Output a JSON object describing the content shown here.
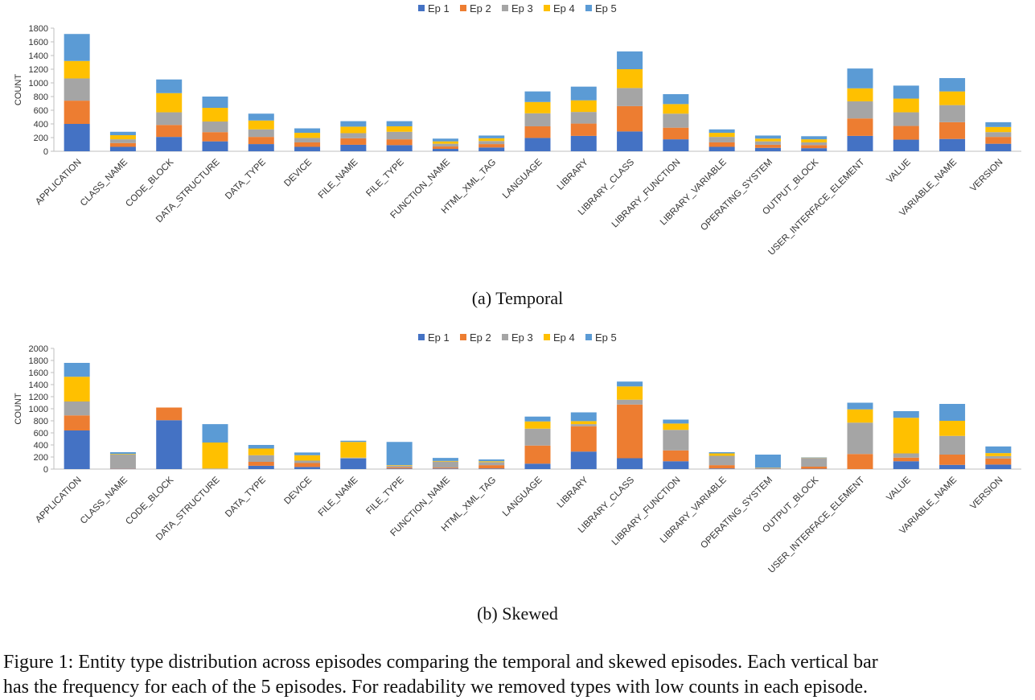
{
  "figure_caption_line1": "Figure 1: Entity type distribution across episodes comparing the temporal and skewed episodes. Each vertical bar",
  "figure_caption_line2": "has the frequency for each of the 5 episodes. For readability we removed types with low counts in each episode.",
  "chart_data": [
    {
      "type": "bar",
      "stacked": true,
      "caption": "(a) Temporal",
      "ylabel": "COUNT",
      "ylim": [
        0,
        1800
      ],
      "yticks": [
        0,
        200,
        400,
        600,
        800,
        1000,
        1200,
        1400,
        1600,
        1800
      ],
      "legend": "top-center",
      "categories": [
        "APPLICATION",
        "CLASS_NAME",
        "CODE_BLOCK",
        "DATA_STRUCTURE",
        "DATA_TYPE",
        "DEVICE",
        "FILE_NAME",
        "FILE_TYPE",
        "FUNCTION_NAME",
        "HTML_XML_TAG",
        "LANGUAGE",
        "LIBRARY",
        "LIBRARY_CLASS",
        "LIBRARY_FUNCTION",
        "LIBRARY_VARIABLE",
        "OPERATING_SYSTEM",
        "OUTPUT_BLOCK",
        "USER_INTERFACE_ELEMENT",
        "VALUE",
        "VARIABLE_NAME",
        "VERSION"
      ],
      "series": [
        {
          "name": "Ep 1",
          "color": "#4472C4",
          "values": [
            400,
            65,
            210,
            145,
            105,
            65,
            95,
            90,
            35,
            55,
            195,
            225,
            290,
            175,
            65,
            50,
            45,
            225,
            170,
            180,
            110
          ]
        },
        {
          "name": "Ep 2",
          "color": "#ED7D31",
          "values": [
            340,
            55,
            175,
            135,
            105,
            65,
            95,
            85,
            35,
            50,
            170,
            180,
            370,
            170,
            65,
            45,
            45,
            255,
            200,
            245,
            100
          ]
        },
        {
          "name": "Ep 3",
          "color": "#A5A5A5",
          "values": [
            325,
            55,
            185,
            155,
            110,
            65,
            75,
            110,
            40,
            45,
            190,
            170,
            265,
            205,
            80,
            50,
            40,
            250,
            200,
            250,
            70
          ]
        },
        {
          "name": "Ep 4",
          "color": "#FFC000",
          "values": [
            255,
            60,
            280,
            200,
            130,
            75,
            95,
            80,
            35,
            40,
            165,
            170,
            275,
            140,
            60,
            40,
            45,
            190,
            200,
            200,
            75
          ]
        },
        {
          "name": "Ep 5",
          "color": "#5B9BD5",
          "values": [
            395,
            50,
            200,
            165,
            100,
            65,
            80,
            75,
            40,
            40,
            155,
            200,
            260,
            145,
            50,
            45,
            45,
            290,
            190,
            195,
            70
          ]
        }
      ]
    },
    {
      "type": "bar",
      "stacked": true,
      "caption": "(b) Skewed",
      "ylabel": "COUNT",
      "ylim": [
        0,
        2000
      ],
      "yticks": [
        0,
        200,
        400,
        600,
        800,
        1000,
        1200,
        1400,
        1600,
        1800,
        2000
      ],
      "legend": "top-center",
      "categories": [
        "APPLICATION",
        "CLASS_NAME",
        "CODE_BLOCK",
        "DATA_STRUCTURE",
        "DATA_TYPE",
        "DEVICE",
        "FILE_NAME",
        "FILE_TYPE",
        "FUNCTION_NAME",
        "HTML_XML_TAG",
        "LANGUAGE",
        "LIBRARY",
        "LIBRARY_CLASS",
        "LIBRARY_FUNCTION",
        "LIBRARY_VARIABLE",
        "OPERATING_SYSTEM",
        "OUTPUT_BLOCK",
        "USER_INTERFACE_ELEMENT",
        "VALUE",
        "VARIABLE_NAME",
        "VERSION"
      ],
      "series": [
        {
          "name": "Ep 1",
          "color": "#4472C4",
          "values": [
            640,
            5,
            810,
            0,
            55,
            35,
            175,
            10,
            10,
            10,
            90,
            290,
            180,
            130,
            10,
            5,
            5,
            0,
            130,
            70,
            75
          ]
        },
        {
          "name": "Ep 2",
          "color": "#ED7D31",
          "values": [
            250,
            5,
            210,
            0,
            65,
            65,
            0,
            20,
            15,
            55,
            300,
            420,
            890,
            180,
            55,
            5,
            35,
            250,
            60,
            170,
            100
          ]
        },
        {
          "name": "Ep 3",
          "color": "#A5A5A5",
          "values": [
            230,
            230,
            0,
            10,
            110,
            40,
            15,
            25,
            100,
            50,
            280,
            35,
            80,
            340,
            155,
            10,
            145,
            520,
            70,
            310,
            40
          ]
        },
        {
          "name": "Ep 4",
          "color": "#FFC000",
          "values": [
            410,
            10,
            0,
            430,
            110,
            90,
            260,
            10,
            10,
            15,
            120,
            50,
            220,
            105,
            40,
            5,
            5,
            220,
            590,
            250,
            50
          ]
        },
        {
          "name": "Ep 5",
          "color": "#5B9BD5",
          "values": [
            230,
            30,
            0,
            305,
            60,
            45,
            20,
            385,
            50,
            30,
            80,
            145,
            80,
            65,
            20,
            215,
            5,
            110,
            110,
            280,
            110
          ]
        }
      ]
    }
  ]
}
